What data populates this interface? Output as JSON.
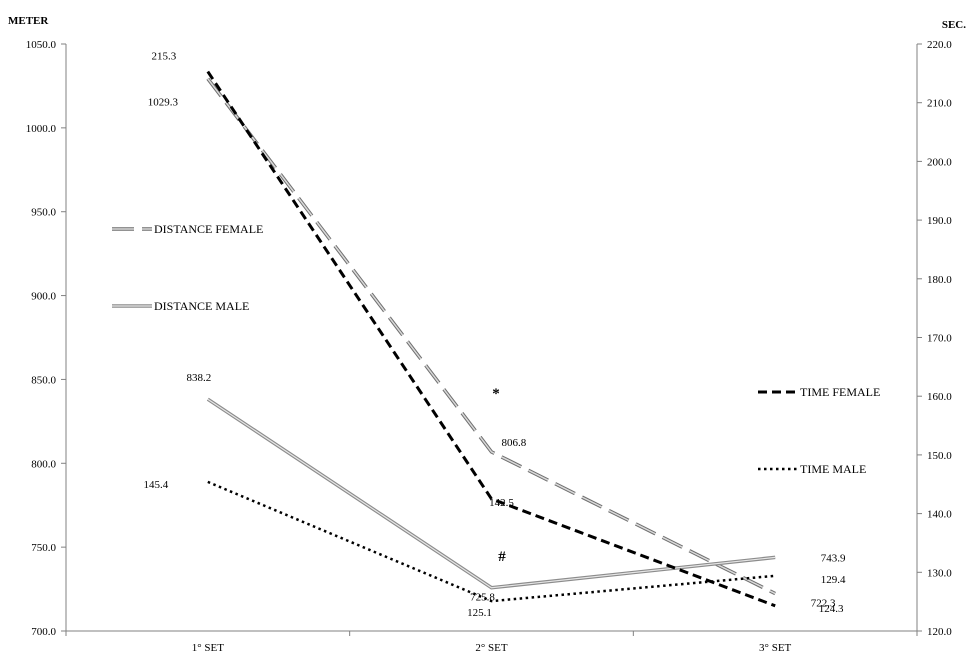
{
  "chart_data": {
    "type": "line",
    "categories": [
      "1° SET",
      "2° SET",
      "3° SET"
    ],
    "left_axis": {
      "label": "METER",
      "min": 700,
      "max": 1050,
      "step": 50,
      "ticks": [
        "700.0",
        "750.0",
        "800.0",
        "850.0",
        "900.0",
        "950.0",
        "1000.0",
        "1050.0"
      ]
    },
    "right_axis": {
      "label": "SEC.",
      "min": 120,
      "max": 220,
      "step": 10,
      "ticks": [
        "120.0",
        "130.0",
        "140.0",
        "150.0",
        "160.0",
        "170.0",
        "180.0",
        "190.0",
        "200.0",
        "210.0",
        "220.0"
      ]
    },
    "series": [
      {
        "name": "DISTANCE FEMALE",
        "axis": "left",
        "style": "long-dash-gray",
        "color": "#a6a6a6",
        "values": [
          1029.3,
          806.8,
          722.3
        ],
        "labels": [
          "1029.3",
          "806.8",
          "722.3"
        ]
      },
      {
        "name": "DISTANCE MALE",
        "axis": "left",
        "style": "double-gray",
        "color": "#a6a6a6",
        "values": [
          838.2,
          725.8,
          743.9
        ],
        "labels": [
          "838.2",
          "725.8",
          "743.9"
        ]
      },
      {
        "name": "TIME FEMALE",
        "axis": "right",
        "style": "dash-black",
        "color": "#000000",
        "values": [
          215.3,
          142.5,
          124.3
        ],
        "labels": [
          "215.3",
          "142.5",
          "124.3"
        ]
      },
      {
        "name": "TIME MALE",
        "axis": "right",
        "style": "dot-black",
        "color": "#000000",
        "values": [
          145.4,
          125.1,
          129.4
        ],
        "labels": [
          "145.4",
          "125.1",
          "129.4"
        ]
      }
    ],
    "annotations": [
      "*",
      "#"
    ],
    "grid": false,
    "legend": "inside-left-and-right"
  }
}
